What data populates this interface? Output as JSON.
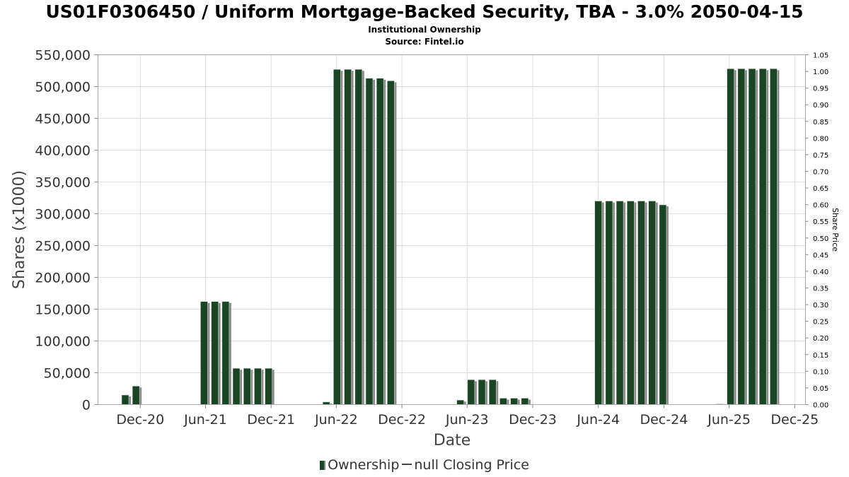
{
  "title": "US01F0306450 / Uniform Mortgage-Backed Security, TBA - 3.0% 2050-04-15",
  "subtitle_1": "Institutional Ownership",
  "subtitle_2": "Source: Fintel.io",
  "colors": {
    "bar": "#1a4425",
    "bar_shadow": "#8a8a8a",
    "grid": "#dddddd"
  },
  "legend": {
    "series_1": "Ownership",
    "series_2": "null Closing Price"
  },
  "chart_data": {
    "type": "bar",
    "xlabel": "Date",
    "ylabel": "Shares (x1000)",
    "y2label": "Share Price",
    "ylim": [
      0,
      550000
    ],
    "y2lim": [
      0,
      1.05
    ],
    "yticks": [
      "0",
      "50,000",
      "100,000",
      "150,000",
      "200,000",
      "250,000",
      "300,000",
      "350,000",
      "400,000",
      "450,000",
      "500,000",
      "550,000"
    ],
    "y2ticks": [
      "0.00",
      "0.05",
      "0.10",
      "0.15",
      "0.20",
      "0.25",
      "0.30",
      "0.35",
      "0.40",
      "0.45",
      "0.50",
      "0.55",
      "0.60",
      "0.65",
      "0.70",
      "0.75",
      "0.80",
      "0.85",
      "0.90",
      "0.95",
      "1.00",
      "1.05"
    ],
    "xticks": [
      "Dec-20",
      "Jun-21",
      "Dec-21",
      "Jun-22",
      "Dec-22",
      "Jun-23",
      "Dec-23",
      "Jun-24",
      "Dec-24",
      "Jun-25",
      "Dec-25"
    ],
    "xticks_date": [
      "2020-12-01",
      "2021-06-01",
      "2021-12-01",
      "2022-06-01",
      "2022-12-01",
      "2023-06-01",
      "2023-12-01",
      "2024-06-01",
      "2024-12-01",
      "2025-06-01",
      "2025-12-01"
    ],
    "xlim": [
      "2020-08-05",
      "2025-12-31"
    ],
    "grid": true,
    "legend_position": "bottom",
    "series": [
      {
        "name": "Ownership",
        "x": [
          "2020-10-20",
          "2020-11-19",
          "2021-05-28",
          "2021-06-27",
          "2021-07-27",
          "2021-08-26",
          "2021-09-25",
          "2021-10-25",
          "2021-11-24",
          "2022-05-04",
          "2022-06-03",
          "2022-07-03",
          "2022-08-02",
          "2022-09-01",
          "2022-10-01",
          "2022-10-31",
          "2023-05-13",
          "2023-06-12",
          "2023-07-12",
          "2023-08-11",
          "2023-09-10",
          "2023-10-10",
          "2023-11-09",
          "2024-06-01",
          "2024-07-01",
          "2024-07-31",
          "2024-08-30",
          "2024-09-29",
          "2024-10-29",
          "2024-11-28",
          "2025-05-06",
          "2025-06-05",
          "2025-07-05",
          "2025-08-04",
          "2025-09-03",
          "2025-10-03"
        ],
        "values": [
          15000,
          29000,
          162000,
          162000,
          162000,
          57000,
          57000,
          57000,
          57000,
          4000,
          527000,
          527000,
          527000,
          513000,
          513000,
          509000,
          7000,
          39000,
          39000,
          39000,
          10000,
          10000,
          10000,
          320000,
          320000,
          320000,
          320000,
          320000,
          320000,
          314000,
          1000,
          528000,
          528000,
          528000,
          528000,
          528000
        ]
      }
    ]
  }
}
